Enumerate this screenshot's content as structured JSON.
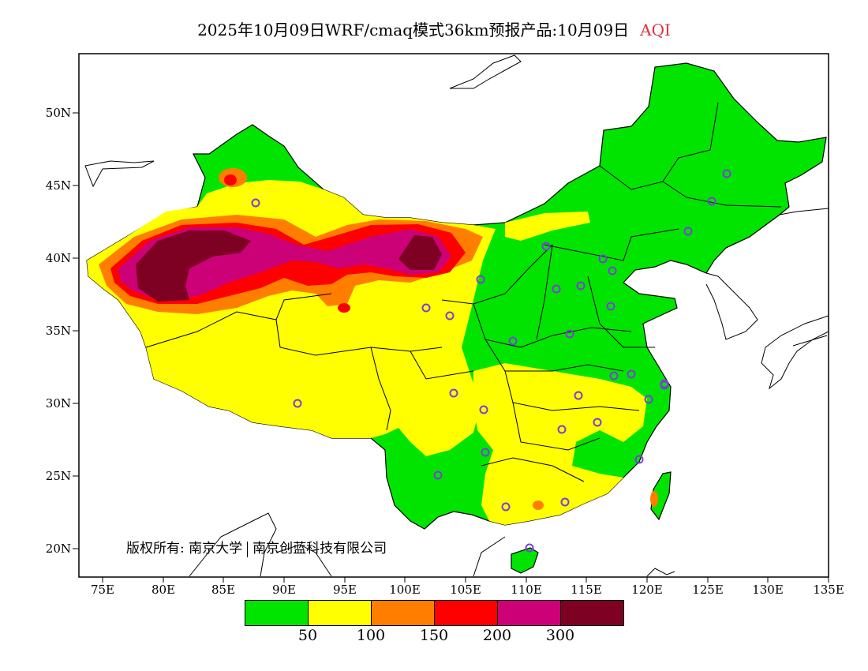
{
  "title": {
    "main": "2025年10月09日WRF/cmaq模式36km预报产品:10月09日",
    "variable": "AQI"
  },
  "axes": {
    "lat_labels": [
      "50N",
      "45N",
      "40N",
      "35N",
      "30N",
      "25N",
      "20N"
    ],
    "lon_labels": [
      "75E",
      "80E",
      "85E",
      "90E",
      "95E",
      "100E",
      "105E",
      "110E",
      "115E",
      "120E",
      "125E",
      "130E",
      "135E"
    ]
  },
  "copyright": {
    "label": "版权所有:",
    "owner1": "南京大学",
    "owner2": "南京创蓝科技有限公司"
  },
  "legend": {
    "colors": [
      "#00e400",
      "#ffff00",
      "#ff7e00",
      "#ff0000",
      "#cc0077",
      "#7e0023"
    ],
    "thresholds": [
      "50",
      "100",
      "150",
      "200",
      "300"
    ]
  },
  "colors": {
    "station_marker": "#7b3fd6",
    "ocean": "#ffffff",
    "border": "#000000"
  },
  "stations_count": 36
}
